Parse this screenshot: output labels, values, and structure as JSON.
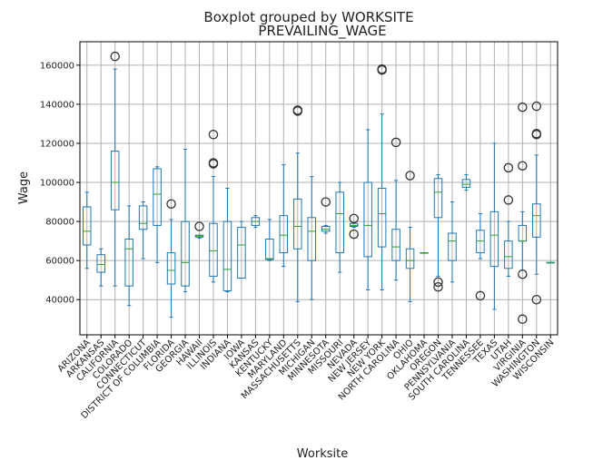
{
  "chart_data": {
    "type": "boxplot",
    "title": "Boxplot grouped by WORKSITE",
    "subtitle": "PREVAILING_WAGE",
    "xlabel": "Worksite",
    "ylabel": "Wage",
    "ylim": [
      22000,
      172000
    ],
    "yticks": [
      40000,
      60000,
      80000,
      100000,
      120000,
      140000,
      160000
    ],
    "grid": true,
    "box_color": "#1f77b4",
    "median_color": "#2ca02c",
    "flier_color": "#333333",
    "categories": [
      "ARIZONA",
      "ARKANSAS",
      "CALIFORNIA",
      "COLORADO",
      "CONNECTICUT",
      "DISTRICT OF COLUMBIA",
      "FLORIDA",
      "GEORGIA",
      "HAWAII",
      "ILLINOIS",
      "INDIANA",
      "IOWA",
      "KANSAS",
      "KENTUCKY",
      "MARYLAND",
      "MASSACHUSETTS",
      "MICHIGAN",
      "MINNESOTA",
      "MISSOURI",
      "NEVADA",
      "NEW JERSEY",
      "NEW YORK",
      "NORTH CAROLINA",
      "OHIO",
      "OKLAHOMA",
      "OREGON",
      "PENNSYLVANIA",
      "SOUTH CAROLINA",
      "TENNESSEE",
      "TEXAS",
      "UTAH",
      "VIRGINIA",
      "WASHINGTON",
      "WISCONSIN"
    ],
    "boxes": [
      {
        "whislo": 56000,
        "q1": 68000,
        "med": 75000,
        "q3": 87500,
        "whishi": 95000,
        "fliers": []
      },
      {
        "whislo": 47000,
        "q1": 54000,
        "med": 58000,
        "q3": 63000,
        "whishi": 66000,
        "fliers": []
      },
      {
        "whislo": 47000,
        "q1": 86000,
        "med": 100000,
        "q3": 116000,
        "whishi": 158000,
        "fliers": [
          164500
        ]
      },
      {
        "whislo": 37000,
        "q1": 47000,
        "med": 66000,
        "q3": 71000,
        "whishi": 88000,
        "fliers": []
      },
      {
        "whislo": 61000,
        "q1": 76000,
        "med": 79000,
        "q3": 88000,
        "whishi": 90000,
        "fliers": []
      },
      {
        "whislo": 59000,
        "q1": 78000,
        "med": 94000,
        "q3": 107000,
        "whishi": 108000,
        "fliers": []
      },
      {
        "whislo": 31000,
        "q1": 48000,
        "med": 55000,
        "q3": 64000,
        "whishi": 81000,
        "fliers": [
          89000
        ]
      },
      {
        "whislo": 44000,
        "q1": 47000,
        "med": 59000,
        "q3": 80000,
        "whishi": 117000,
        "fliers": []
      },
      {
        "whislo": 71500,
        "q1": 72000,
        "med": 72500,
        "q3": 73000,
        "whishi": 73000,
        "fliers": [
          77500
        ]
      },
      {
        "whislo": 49000,
        "q1": 52000,
        "med": 65000,
        "q3": 79000,
        "whishi": 103000,
        "fliers": [
          109500,
          110000,
          124500
        ]
      },
      {
        "whislo": 44000,
        "q1": 44500,
        "med": 55500,
        "q3": 80000,
        "whishi": 97000,
        "fliers": []
      },
      {
        "whislo": 51000,
        "q1": 51000,
        "med": 68000,
        "q3": 77000,
        "whishi": 80000,
        "fliers": []
      },
      {
        "whislo": 77000,
        "q1": 78000,
        "med": 80000,
        "q3": 82000,
        "whishi": 83000,
        "fliers": []
      },
      {
        "whislo": 60000,
        "q1": 60500,
        "med": 61000,
        "q3": 71000,
        "whishi": 81000,
        "fliers": []
      },
      {
        "whislo": 57000,
        "q1": 64000,
        "med": 73000,
        "q3": 83000,
        "whishi": 109000,
        "fliers": []
      },
      {
        "whislo": 39000,
        "q1": 66000,
        "med": 77500,
        "q3": 91500,
        "whishi": 115000,
        "fliers": [
          136500,
          137000
        ]
      },
      {
        "whislo": 40000,
        "q1": 60000,
        "med": 75000,
        "q3": 82000,
        "whishi": 103000,
        "fliers": []
      },
      {
        "whislo": 74000,
        "q1": 75000,
        "med": 76000,
        "q3": 77500,
        "whishi": 78000,
        "fliers": [
          90000
        ]
      },
      {
        "whislo": 54000,
        "q1": 64000,
        "med": 84000,
        "q3": 95000,
        "whishi": 100000,
        "fliers": []
      },
      {
        "whislo": 77000,
        "q1": 77500,
        "med": 78000,
        "q3": 79000,
        "whishi": 79500,
        "fliers": [
          81500,
          73500
        ]
      },
      {
        "whislo": 45000,
        "q1": 62000,
        "med": 78000,
        "q3": 100000,
        "whishi": 127000,
        "fliers": []
      },
      {
        "whislo": 45000,
        "q1": 67000,
        "med": 84000,
        "q3": 97000,
        "whishi": 135000,
        "fliers": [
          157500,
          158000
        ]
      },
      {
        "whislo": 50000,
        "q1": 60000,
        "med": 67000,
        "q3": 76000,
        "whishi": 101000,
        "fliers": [
          120500
        ]
      },
      {
        "whislo": 39000,
        "q1": 56000,
        "med": 60000,
        "q3": 66000,
        "whishi": 77000,
        "fliers": [
          103500
        ]
      },
      {
        "whislo": 64000,
        "q1": 64000,
        "med": 64000,
        "q3": 64000,
        "whishi": 64000,
        "fliers": []
      },
      {
        "whislo": 52000,
        "q1": 82000,
        "med": 95000,
        "q3": 102000,
        "whishi": 104000,
        "fliers": [
          49000,
          46500
        ]
      },
      {
        "whislo": 49000,
        "q1": 60000,
        "med": 70000,
        "q3": 74000,
        "whishi": 90000,
        "fliers": []
      },
      {
        "whislo": 96000,
        "q1": 97500,
        "med": 99000,
        "q3": 101500,
        "whishi": 104000,
        "fliers": []
      },
      {
        "whislo": 61000,
        "q1": 64000,
        "med": 70000,
        "q3": 75500,
        "whishi": 84000,
        "fliers": [
          42000
        ]
      },
      {
        "whislo": 35000,
        "q1": 57000,
        "med": 73000,
        "q3": 85000,
        "whishi": 120000,
        "fliers": []
      },
      {
        "whislo": 52000,
        "q1": 56000,
        "med": 62000,
        "q3": 70000,
        "whishi": 80000,
        "fliers": [
          91000,
          107500
        ]
      },
      {
        "whislo": 55000,
        "q1": 70000,
        "med": 70000,
        "q3": 78000,
        "whishi": 85000,
        "fliers": [
          30000,
          53000,
          108500,
          138500
        ]
      },
      {
        "whislo": 53000,
        "q1": 72000,
        "med": 83000,
        "q3": 89000,
        "whishi": 114000,
        "fliers": [
          40000,
          124500,
          125000,
          139000
        ]
      },
      {
        "whislo": 59000,
        "q1": 59000,
        "med": 59000,
        "q3": 59000,
        "whishi": 59000,
        "fliers": []
      }
    ]
  }
}
